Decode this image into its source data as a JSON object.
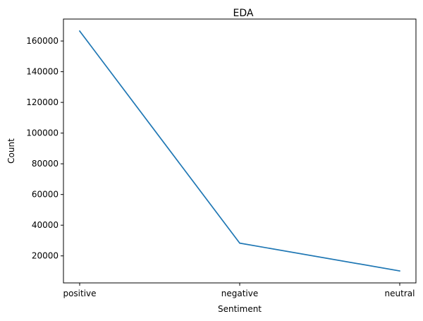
{
  "chart_data": {
    "type": "line",
    "title": "EDA",
    "xlabel": "Sentiment",
    "ylabel": "Count",
    "categories": [
      "positive",
      "negative",
      "neutral"
    ],
    "series": [
      {
        "name": "Count",
        "color": "#1f77b4",
        "values": [
          166500,
          28300,
          10200
        ]
      }
    ],
    "ylim": [
      2400,
      174300
    ],
    "yticks": [
      20000,
      40000,
      60000,
      80000,
      100000,
      120000,
      140000,
      160000
    ],
    "ytick_labels": [
      "20000",
      "40000",
      "60000",
      "80000",
      "100000",
      "120000",
      "140000",
      "160000"
    ],
    "grid": false,
    "legend": "none"
  }
}
